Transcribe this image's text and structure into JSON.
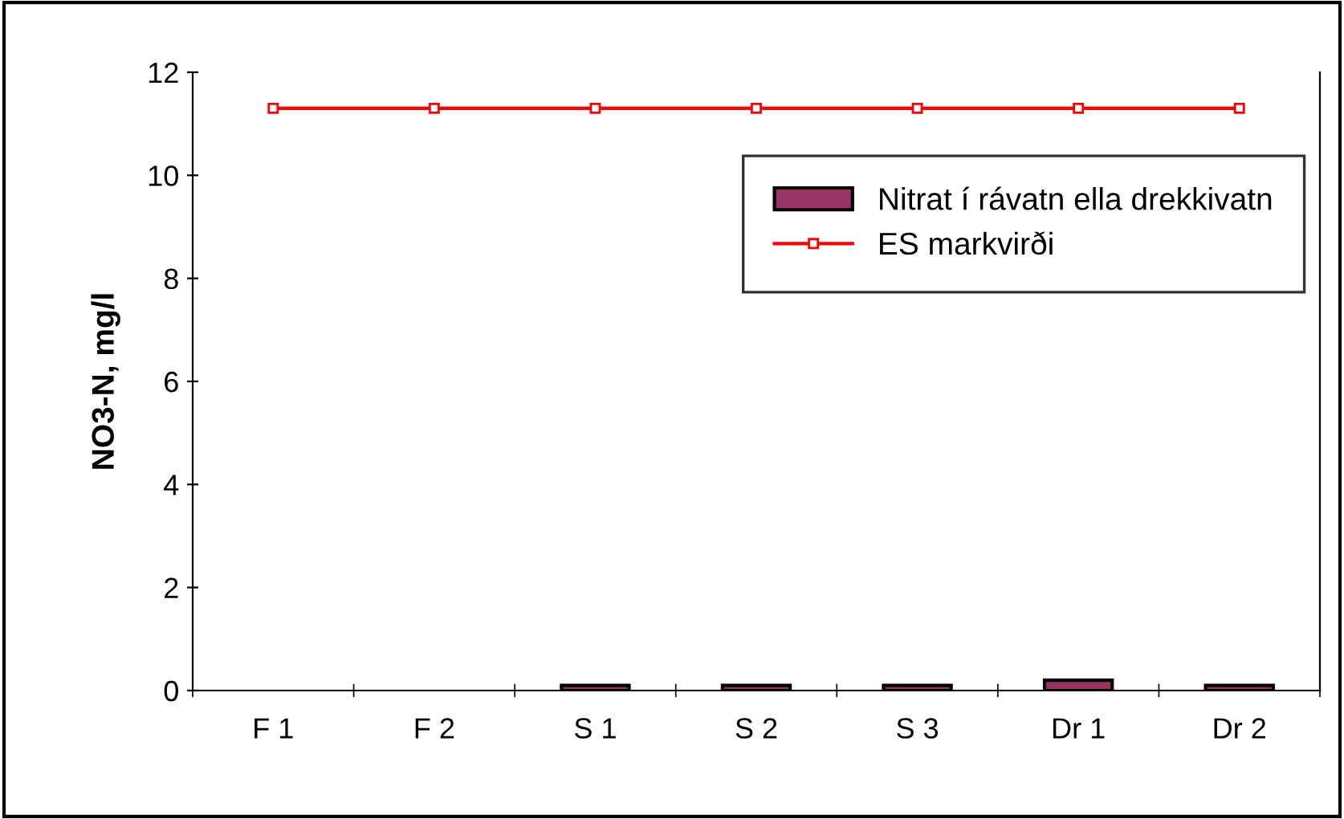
{
  "chart_data": {
    "type": "bar",
    "ylabel": "NO3-N, mg/l",
    "categories": [
      "F 1",
      "F 2",
      "S 1",
      "S 2",
      "S 3",
      "Dr 1",
      "Dr 2"
    ],
    "series": [
      {
        "name": "Nitrat í rávatn ella drekkivatn",
        "color": "#993366",
        "values": [
          null,
          null,
          0.1,
          0.1,
          0.1,
          0.2,
          0.1
        ]
      },
      {
        "type": "line",
        "name": "ES markvirði",
        "color": "#ff0000",
        "marker": "square",
        "values": [
          11.3,
          11.3,
          11.3,
          11.3,
          11.3,
          11.3,
          11.3
        ]
      }
    ],
    "ylim": [
      0,
      12
    ],
    "yticks": [
      0,
      2,
      4,
      6,
      8,
      10,
      12
    ],
    "grid": false,
    "legend": "top right"
  }
}
